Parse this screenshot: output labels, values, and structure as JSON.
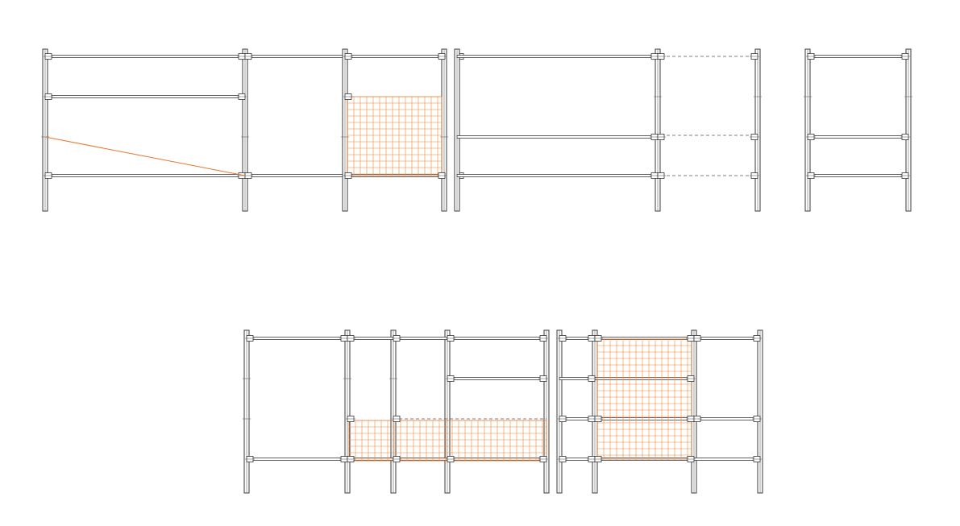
{
  "drawing": {
    "background": "#ffffff",
    "line_color": "#3a3a3a",
    "mesh_color": "#f08a3c",
    "elements": [
      "scaffold-frame",
      "scaffold-post",
      "ledger-rail",
      "coupler-clamp",
      "mesh-net-panel",
      "diagonal-brace"
    ]
  }
}
